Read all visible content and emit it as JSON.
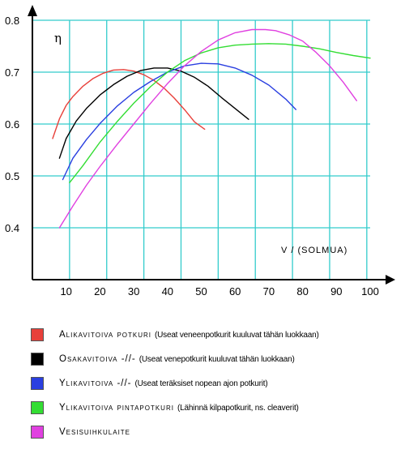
{
  "chart_data": {
    "type": "line",
    "ylabel": "η",
    "xlabel": "V / (SOLMUA)",
    "xlim": [
      0,
      100
    ],
    "ylim": [
      0.3,
      0.8
    ],
    "x_ticks": [
      10,
      20,
      30,
      40,
      50,
      60,
      70,
      80,
      90,
      100
    ],
    "y_ticks": [
      0.4,
      0.5,
      0.6,
      0.7,
      0.8
    ],
    "x_tick_labels": [
      "10",
      "20",
      "30",
      "40",
      "50",
      "60",
      "70",
      "80",
      "90",
      "100"
    ],
    "y_tick_labels": [
      "0.4",
      "0.5",
      "0.6",
      "0.7",
      "0.8"
    ],
    "x_gridlines": [
      11,
      22,
      33,
      44,
      55,
      66,
      77,
      88,
      99
    ],
    "y_gridlines": [
      0.4,
      0.5,
      0.6,
      0.7,
      0.8
    ],
    "grid": true,
    "grid_color": "#33cccc",
    "series": [
      {
        "name": "Alikavitoiva potkuri",
        "note": "(Useat veneenpotkurit kuuluvat tähän luokkaan)",
        "color": "#e8403a",
        "x": [
          6,
          8,
          10,
          12,
          15,
          18,
          21,
          24,
          27,
          30,
          33,
          36,
          39,
          42,
          45,
          48,
          51
        ],
        "y": [
          0.572,
          0.61,
          0.636,
          0.653,
          0.673,
          0.688,
          0.698,
          0.704,
          0.705,
          0.702,
          0.695,
          0.684,
          0.669,
          0.65,
          0.628,
          0.604,
          0.59
        ]
      },
      {
        "name": "Osakavitoiva -//-",
        "note": "(Useat venepotkurit kuuluvat tähän luokkaan)",
        "color": "#000000",
        "x": [
          8,
          10,
          13,
          16,
          20,
          24,
          28,
          32,
          36,
          40,
          44,
          48,
          52,
          56,
          60,
          64
        ],
        "y": [
          0.534,
          0.572,
          0.606,
          0.63,
          0.656,
          0.676,
          0.692,
          0.703,
          0.708,
          0.708,
          0.702,
          0.69,
          0.673,
          0.651,
          0.63,
          0.609
        ]
      },
      {
        "name": "Ylikavitoiva -//-",
        "note": "(Useat teräksiset nopean ajon potkurit)",
        "color": "#2a3fe0",
        "x": [
          9,
          12,
          16,
          20,
          25,
          30,
          35,
          40,
          45,
          50,
          55,
          60,
          65,
          70,
          75,
          78
        ],
        "y": [
          0.493,
          0.534,
          0.57,
          0.601,
          0.634,
          0.661,
          0.682,
          0.7,
          0.712,
          0.717,
          0.716,
          0.708,
          0.694,
          0.675,
          0.648,
          0.628
        ]
      },
      {
        "name": "Ylikavitoiva pintapotkuri",
        "note": "(Lähinnä kilpapotkurit, ns. cleaverit)",
        "color": "#33dd33",
        "x": [
          11,
          15,
          20,
          25,
          30,
          35,
          40,
          45,
          50,
          55,
          60,
          65,
          70,
          75,
          80,
          85,
          90,
          95,
          100
        ],
        "y": [
          0.487,
          0.52,
          0.565,
          0.604,
          0.64,
          0.672,
          0.7,
          0.722,
          0.737,
          0.747,
          0.752,
          0.754,
          0.755,
          0.754,
          0.75,
          0.745,
          0.738,
          0.732,
          0.727
        ]
      },
      {
        "name": "Vesisuihkulaite",
        "note": "",
        "color": "#e040e0",
        "x": [
          8,
          12,
          16,
          20,
          25,
          30,
          35,
          40,
          45,
          50,
          55,
          60,
          65,
          69,
          72,
          76,
          80,
          84,
          88,
          92,
          96
        ],
        "y": [
          0.4,
          0.442,
          0.482,
          0.518,
          0.56,
          0.6,
          0.64,
          0.678,
          0.712,
          0.74,
          0.762,
          0.776,
          0.782,
          0.782,
          0.78,
          0.772,
          0.76,
          0.738,
          0.712,
          0.681,
          0.645
        ]
      }
    ]
  },
  "legend": {
    "items": [
      {
        "name": "Alikavitoiva potkuri",
        "note": "(Useat veneenpotkurit kuuluvat tähän luokkaan)",
        "color": "#e8403a"
      },
      {
        "name": "Osakavitoiva -//-",
        "note": "(Useat venepotkurit kuuluvat tähän luokkaan)",
        "color": "#000000"
      },
      {
        "name": "Ylikavitoiva -//-",
        "note": "(Useat teräksiset nopean ajon potkurit)",
        "color": "#2a3fe0"
      },
      {
        "name": "Ylikavitoiva pintapotkuri",
        "note": "(Lähinnä kilpapotkurit, ns. cleaverit)",
        "color": "#33dd33"
      },
      {
        "name": "Vesisuihkulaite",
        "note": "",
        "color": "#e040e0"
      }
    ]
  }
}
